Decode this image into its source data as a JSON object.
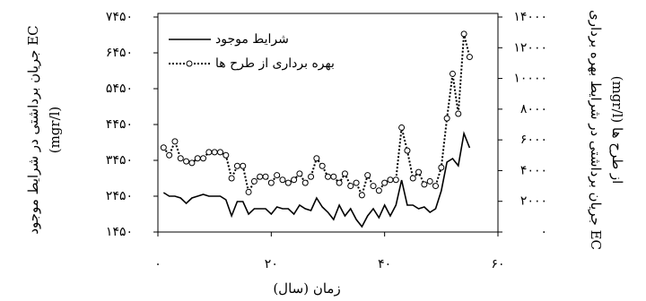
{
  "chart_data": {
    "type": "line",
    "x_label": "زمان (سال)",
    "y_label": [
      "EC جریان برداشتی در شرایط موجود",
      "(mgr/l)"
    ],
    "y2_label": [
      "EC جریان برداشتی در شرایط بهره برداری",
      "از طرح ها (mgr/l)"
    ],
    "x": [
      1,
      2,
      3,
      4,
      5,
      6,
      7,
      8,
      9,
      10,
      11,
      12,
      13,
      14,
      15,
      16,
      17,
      18,
      19,
      20,
      21,
      22,
      23,
      24,
      25,
      26,
      27,
      28,
      29,
      30,
      31,
      32,
      33,
      34,
      35,
      36,
      37,
      38,
      39,
      40,
      41,
      42,
      43,
      44,
      45,
      46,
      47,
      48,
      49,
      50,
      51,
      52,
      53,
      54,
      55
    ],
    "series": [
      {
        "name": "شرایط موجود",
        "color": "#000000",
        "style": "solid",
        "values": [
          2550,
          2450,
          2450,
          2400,
          2250,
          2400,
          2450,
          2500,
          2450,
          2450,
          2450,
          2350,
          1900,
          2300,
          2300,
          1950,
          2100,
          2100,
          2100,
          1950,
          2150,
          2100,
          2100,
          1950,
          2200,
          2100,
          2050,
          2400,
          2150,
          2000,
          1800,
          2200,
          1900,
          2100,
          1800,
          1600,
          1900,
          2100,
          1850,
          2200,
          1900,
          2200,
          2900,
          2200,
          2200,
          2100,
          2150,
          2000,
          2100,
          2600,
          3400,
          3500,
          3300,
          4200,
          3800
        ]
      },
      {
        "name": "بهره برداری از طرح ها",
        "color": "#000000",
        "style": "dotted",
        "axis": "y2",
        "values": [
          5500,
          5000,
          5900,
          4800,
          4600,
          4500,
          4800,
          4800,
          5200,
          5200,
          5200,
          5000,
          3500,
          4300,
          4300,
          2600,
          3300,
          3600,
          3600,
          3200,
          3700,
          3400,
          3200,
          3400,
          3800,
          3200,
          3600,
          4800,
          4300,
          3600,
          3600,
          3200,
          3800,
          3000,
          3200,
          2400,
          3700,
          3000,
          2700,
          3200,
          3400,
          3400,
          6800,
          5300,
          3500,
          3900,
          3100,
          3300,
          3000,
          4200,
          7400,
          10300,
          7700,
          12900,
          11400
        ]
      }
    ],
    "xlim": [
      0,
      60
    ],
    "xticks": [
      {
        "value": 0,
        "label": "۰"
      },
      {
        "value": 20,
        "label": "۲۰"
      },
      {
        "value": 40,
        "label": "۴۰"
      },
      {
        "value": 60,
        "label": "۶۰"
      }
    ],
    "ylim": [
      1450,
      7450
    ],
    "yticks": [
      {
        "value": 1450,
        "label": "۱۴۵۰"
      },
      {
        "value": 2450,
        "label": "۲۴۵۰"
      },
      {
        "value": 3450,
        "label": "۳۴۵۰"
      },
      {
        "value": 4450,
        "label": "۴۴۵۰"
      },
      {
        "value": 5450,
        "label": "۵۴۵۰"
      },
      {
        "value": 6450,
        "label": "۶۴۵۰"
      },
      {
        "value": 7450,
        "label": "۷۴۵۰"
      }
    ],
    "y2lim": [
      0,
      14000
    ],
    "y2ticks": [
      {
        "value": 0,
        "label": "۰"
      },
      {
        "value": 2000,
        "label": "۲۰۰۰"
      },
      {
        "value": 4000,
        "label": "۴۰۰۰"
      },
      {
        "value": 6000,
        "label": "۶۰۰۰"
      },
      {
        "value": 8000,
        "label": "۸۰۰۰"
      },
      {
        "value": 10000,
        "label": "۱۰۰۰۰"
      },
      {
        "value": 12000,
        "label": "۱۲۰۰۰"
      },
      {
        "value": 14000,
        "label": "۱۴۰۰۰"
      }
    ],
    "legend": "top-left"
  }
}
